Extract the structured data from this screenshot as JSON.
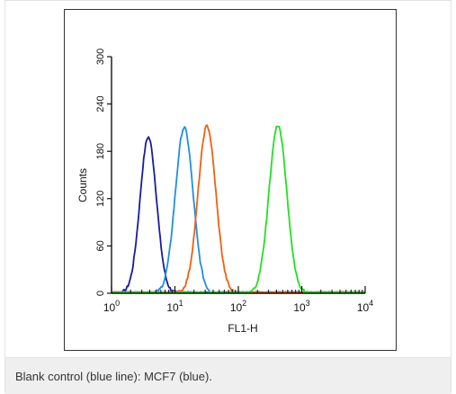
{
  "caption": "Blank control (blue line): MCF7 (blue).",
  "chart_data": {
    "type": "line",
    "title": "",
    "xlabel": "FL1-H",
    "ylabel": "Counts",
    "xscale": "log",
    "xlim": [
      1,
      10000
    ],
    "ylim": [
      0,
      300
    ],
    "x_ticks": [
      {
        "base": "10",
        "exp": "0"
      },
      {
        "base": "10",
        "exp": "1"
      },
      {
        "base": "10",
        "exp": "2"
      },
      {
        "base": "10",
        "exp": "3"
      },
      {
        "base": "10",
        "exp": "4"
      }
    ],
    "y_ticks": [
      "0",
      "60",
      "120",
      "180",
      "240",
      "300"
    ],
    "grid": false,
    "legend": "none",
    "series": [
      {
        "color": "#1a1aa0",
        "peak_x": 3.8,
        "peak_y": 198,
        "log_sd": 0.13
      },
      {
        "color": "#1f8fe0",
        "peak_x": 14,
        "peak_y": 210,
        "log_sd": 0.14
      },
      {
        "color": "#f06010",
        "peak_x": 32,
        "peak_y": 212,
        "log_sd": 0.14
      },
      {
        "color": "#22e022",
        "peak_x": 420,
        "peak_y": 213,
        "log_sd": 0.14
      }
    ]
  }
}
